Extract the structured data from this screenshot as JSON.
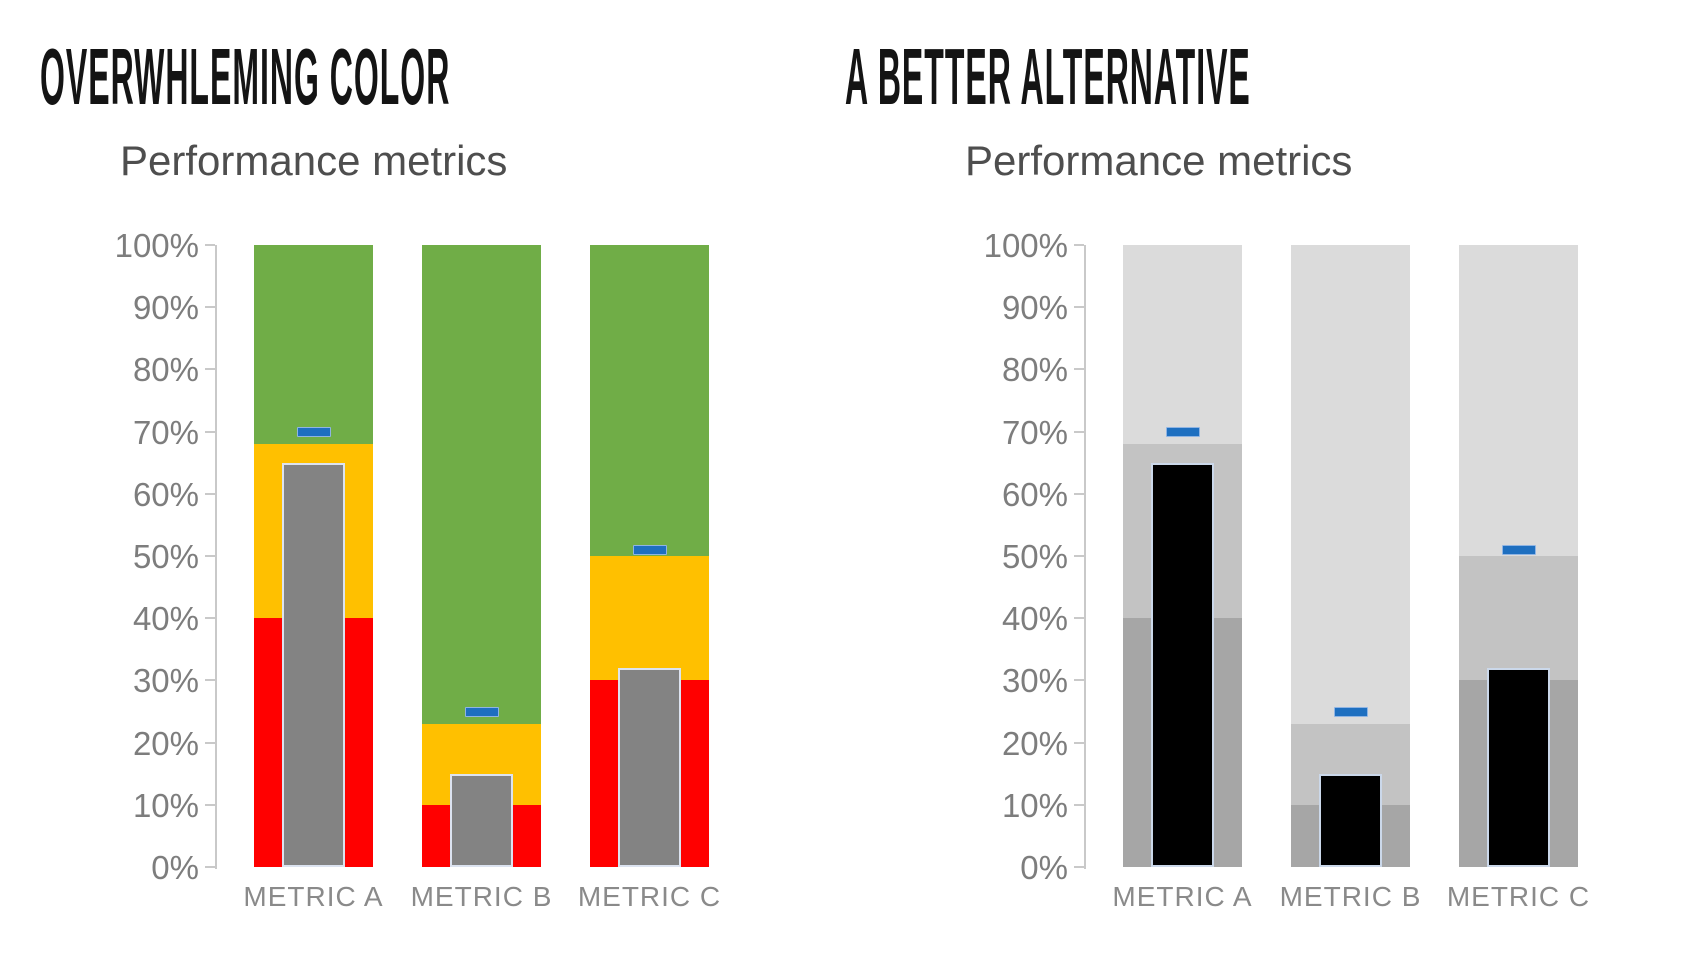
{
  "chart_data": [
    {
      "type": "bar",
      "variant": "stacked-background-bands-with-overlay-bar-and-target-dash",
      "panel_heading": "OVERWHLEMING COLOR",
      "title": "Performance metrics",
      "categories": [
        "METRIC A",
        "METRIC B",
        "METRIC C"
      ],
      "y_tick_labels": [
        "100%",
        "90%",
        "80%",
        "70%",
        "60%",
        "50%",
        "40%",
        "30%",
        "20%",
        "10%",
        "0%"
      ],
      "ylim": [
        0,
        100
      ],
      "y_unit": "%",
      "grid": false,
      "legend": false,
      "series": [
        {
          "name": "low band (red zone)",
          "role": "band-low",
          "color": "#FF0000",
          "values": [
            40,
            10,
            30
          ]
        },
        {
          "name": "mid band (yellow zone)",
          "role": "band-mid",
          "color": "#FFC000",
          "values": [
            28,
            13,
            20
          ]
        },
        {
          "name": "high band (green zone)",
          "role": "band-high",
          "color": "#70AD47",
          "values": [
            32,
            77,
            50
          ]
        },
        {
          "name": "actual (overlay bar)",
          "role": "actual",
          "color": "#838383",
          "border_color": "#DCE3F0",
          "values": [
            65,
            15,
            32
          ]
        },
        {
          "name": "target (dash marker)",
          "role": "target",
          "color": "#1E6FC0",
          "values": [
            70,
            25,
            51
          ]
        }
      ],
      "axis_color": "#C9C9C9",
      "tick_label_color": "#7D7D7D",
      "category_label_color": "#8A8A8A",
      "title_color": "#4E4E4E"
    },
    {
      "type": "bar",
      "variant": "stacked-background-bands-with-overlay-bar-and-target-dash",
      "panel_heading": "A BETTER ALTERNATIVE",
      "title": "Performance metrics",
      "categories": [
        "METRIC A",
        "METRIC B",
        "METRIC C"
      ],
      "y_tick_labels": [
        "100%",
        "90%",
        "80%",
        "70%",
        "60%",
        "50%",
        "40%",
        "30%",
        "20%",
        "10%",
        "0%"
      ],
      "ylim": [
        0,
        100
      ],
      "y_unit": "%",
      "grid": false,
      "legend": false,
      "series": [
        {
          "name": "low band (dark gray zone)",
          "role": "band-low",
          "color": "#A6A6A6",
          "values": [
            40,
            10,
            30
          ]
        },
        {
          "name": "mid band (medium gray zone)",
          "role": "band-mid",
          "color": "#C3C3C3",
          "values": [
            28,
            13,
            20
          ]
        },
        {
          "name": "high band (light gray zone)",
          "role": "band-high",
          "color": "#DBDBDB",
          "values": [
            32,
            77,
            50
          ]
        },
        {
          "name": "actual (overlay bar)",
          "role": "actual",
          "color": "#000000",
          "border_color": "#CBD8EA",
          "values": [
            65,
            15,
            32
          ]
        },
        {
          "name": "target (dash marker)",
          "role": "target",
          "color": "#1E6FC0",
          "values": [
            70,
            25,
            51
          ]
        }
      ],
      "axis_color": "#C9C9C9",
      "tick_label_color": "#7D7D7D",
      "category_label_color": "#8A8A8A",
      "title_color": "#4E4E4E"
    }
  ]
}
